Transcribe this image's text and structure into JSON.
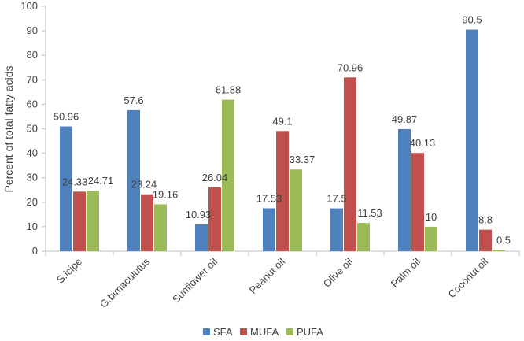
{
  "chart_data": {
    "type": "bar",
    "title": "",
    "xlabel": "",
    "ylabel": "Percent of total fatty acids",
    "ylim": [
      0,
      100
    ],
    "ytick_step": 10,
    "grid": false,
    "legend_position": "bottom",
    "categories": [
      "S.icipe",
      "G.bimaculutus",
      "Sunflower oil",
      "Peanut oil",
      "Olive oil",
      "Palm oil",
      "Coconut oil"
    ],
    "series": [
      {
        "name": "SFA",
        "color": "#4f81bd",
        "values": [
          50.96,
          57.6,
          10.93,
          17.53,
          17.5,
          49.87,
          90.5
        ]
      },
      {
        "name": "MUFA",
        "color": "#c0504d",
        "values": [
          24.33,
          23.24,
          26.04,
          49.1,
          70.96,
          40.13,
          8.8
        ]
      },
      {
        "name": "PUFA",
        "color": "#9bbb59",
        "values": [
          24.71,
          19.16,
          61.88,
          33.37,
          11.53,
          10,
          0.5
        ]
      }
    ]
  }
}
